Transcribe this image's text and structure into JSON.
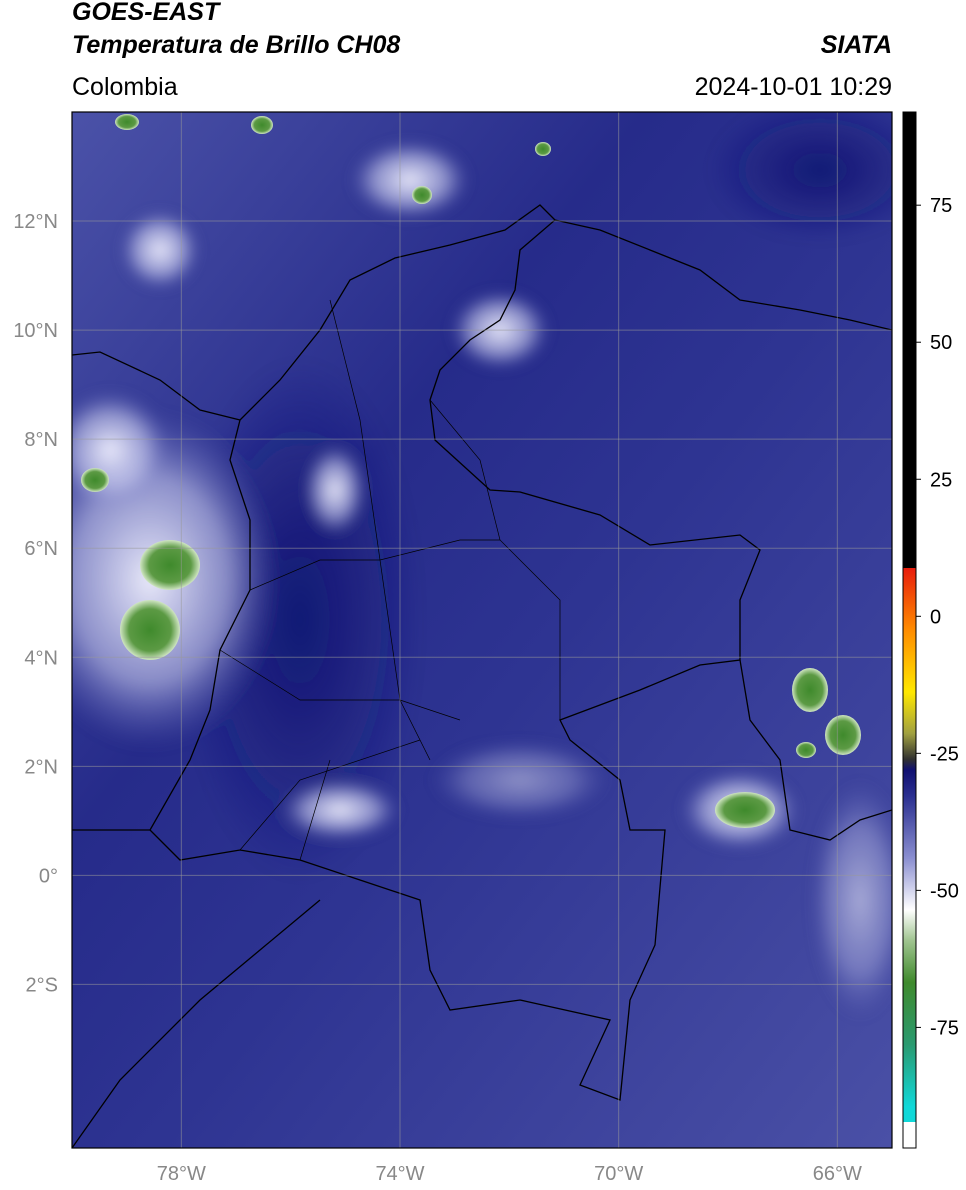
{
  "header": {
    "title": "GOES-EAST",
    "subtitle": "Temperatura de Brillo CH08",
    "region": "Colombia",
    "source": "SIATA",
    "datetime": "2024-10-01 10:29"
  },
  "map": {
    "xlim": [
      -80,
      -65
    ],
    "ylim": [
      -5,
      14
    ],
    "yticks": [
      {
        "value": 12,
        "label": "12°N"
      },
      {
        "value": 10,
        "label": "10°N"
      },
      {
        "value": 8,
        "label": "8°N"
      },
      {
        "value": 6,
        "label": "6°N"
      },
      {
        "value": 4,
        "label": "4°N"
      },
      {
        "value": 2,
        "label": "2°N"
      },
      {
        "value": 0,
        "label": "0°"
      },
      {
        "value": -2,
        "label": "2°S"
      }
    ],
    "xticks": [
      {
        "value": -78,
        "label": "78°W"
      },
      {
        "value": -74,
        "label": "74°W"
      },
      {
        "value": -70,
        "label": "70°W"
      },
      {
        "value": -66,
        "label": "66°W"
      }
    ]
  },
  "colorbar": {
    "lim": [
      -97,
      92
    ],
    "ticks": [
      75,
      50,
      25,
      0,
      -25,
      -50,
      -75
    ]
  }
}
